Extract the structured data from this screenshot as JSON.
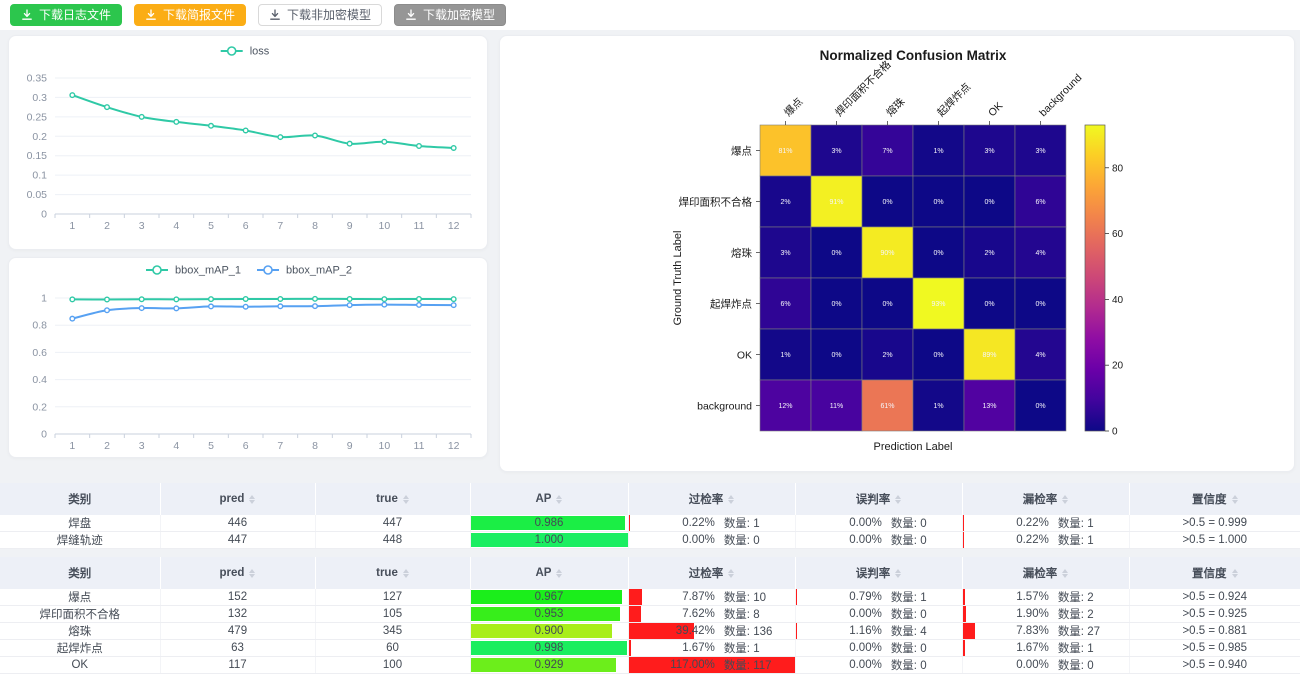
{
  "toolbar": {
    "buttons": [
      {
        "label": "下载日志文件",
        "variant": "green"
      },
      {
        "label": "下载简报文件",
        "variant": "orange"
      },
      {
        "label": "下载非加密模型",
        "variant": "plain"
      },
      {
        "label": "下载加密模型",
        "variant": "gray"
      }
    ]
  },
  "chart_data": [
    {
      "id": "loss",
      "type": "line",
      "legend_position": "top",
      "grid": true,
      "x": [
        1,
        2,
        3,
        4,
        5,
        6,
        7,
        8,
        9,
        10,
        11,
        12
      ],
      "series": [
        {
          "name": "loss",
          "color": "#2fc9a6",
          "values": [
            0.306,
            0.275,
            0.25,
            0.237,
            0.227,
            0.215,
            0.198,
            0.202,
            0.181,
            0.186,
            0.175,
            0.17
          ]
        }
      ],
      "yticks": [
        0,
        0.05,
        0.1,
        0.15,
        0.2,
        0.25,
        0.3,
        0.35
      ],
      "ylim": [
        0,
        0.35
      ]
    },
    {
      "id": "map",
      "type": "line",
      "legend_position": "top",
      "grid": true,
      "x": [
        1,
        2,
        3,
        4,
        5,
        6,
        7,
        8,
        9,
        10,
        11,
        12
      ],
      "series": [
        {
          "name": "bbox_mAP_1",
          "color": "#2fc9a6",
          "values": [
            0.99,
            0.989,
            0.991,
            0.99,
            0.992,
            0.993,
            0.993,
            0.994,
            0.993,
            0.992,
            0.993,
            0.992
          ]
        },
        {
          "name": "bbox_mAP_2",
          "color": "#57a1f2",
          "values": [
            0.848,
            0.91,
            0.926,
            0.924,
            0.938,
            0.936,
            0.939,
            0.94,
            0.948,
            0.951,
            0.949,
            0.948
          ]
        }
      ],
      "yticks": [
        0,
        0.2,
        0.4,
        0.6,
        0.8,
        1
      ],
      "ylim": [
        0,
        1
      ]
    },
    {
      "id": "confusion",
      "type": "heatmap",
      "title": "Normalized Confusion Matrix",
      "xlabel": "Prediction Label",
      "ylabel": "Ground Truth Label",
      "labels": [
        "爆点",
        "焊印面积不合格",
        "熔珠",
        "起焊炸点",
        "OK",
        "background"
      ],
      "matrix": [
        [
          81,
          3,
          7,
          1,
          3,
          3
        ],
        [
          2,
          91,
          0,
          0,
          0,
          6
        ],
        [
          3,
          0,
          90,
          0,
          2,
          4
        ],
        [
          6,
          0,
          0,
          93,
          0,
          0
        ],
        [
          1,
          0,
          2,
          0,
          89,
          4
        ],
        [
          12,
          11,
          61,
          1,
          13,
          0
        ]
      ],
      "value_suffix": "%",
      "vmax": 93,
      "colorbar_ticks": [
        0,
        20,
        40,
        60,
        80
      ],
      "colormap": "plasma"
    }
  ],
  "labels": {
    "count_prefix": "数量: "
  },
  "tables": [
    {
      "headers": [
        {
          "label": "类别",
          "sortable": false
        },
        {
          "label": "pred",
          "sortable": true
        },
        {
          "label": "true",
          "sortable": true
        },
        {
          "label": "AP",
          "sortable": true
        },
        {
          "label": "过检率",
          "sortable": true
        },
        {
          "label": "误判率",
          "sortable": true
        },
        {
          "label": "漏检率",
          "sortable": true
        },
        {
          "label": "置信度",
          "sortable": true
        }
      ],
      "rows": [
        {
          "name": "焊盘",
          "pred": 446,
          "true": 447,
          "ap": 0.986,
          "over": {
            "pct": 0.22,
            "count": 1
          },
          "mis": {
            "pct": 0.0,
            "count": 0
          },
          "miss": {
            "pct": 0.22,
            "count": 1
          },
          "conf": ">0.5 = 0.999"
        },
        {
          "name": "焊缝轨迹",
          "pred": 447,
          "true": 448,
          "ap": 1.0,
          "over": {
            "pct": 0.0,
            "count": 0
          },
          "mis": {
            "pct": 0.0,
            "count": 0
          },
          "miss": {
            "pct": 0.22,
            "count": 1
          },
          "conf": ">0.5 = 1.000"
        }
      ]
    },
    {
      "headers": [
        {
          "label": "类别",
          "sortable": false
        },
        {
          "label": "pred",
          "sortable": true
        },
        {
          "label": "true",
          "sortable": true
        },
        {
          "label": "AP",
          "sortable": true
        },
        {
          "label": "过检率",
          "sortable": true
        },
        {
          "label": "误判率",
          "sortable": true
        },
        {
          "label": "漏检率",
          "sortable": true
        },
        {
          "label": "置信度",
          "sortable": true
        }
      ],
      "rows": [
        {
          "name": "爆点",
          "pred": 152,
          "true": 127,
          "ap": 0.967,
          "over": {
            "pct": 7.87,
            "count": 10
          },
          "mis": {
            "pct": 0.79,
            "count": 1
          },
          "miss": {
            "pct": 1.57,
            "count": 2
          },
          "conf": ">0.5 = 0.924"
        },
        {
          "name": "焊印面积不合格",
          "pred": 132,
          "true": 105,
          "ap": 0.953,
          "over": {
            "pct": 7.62,
            "count": 8
          },
          "mis": {
            "pct": 0.0,
            "count": 0
          },
          "miss": {
            "pct": 1.9,
            "count": 2
          },
          "conf": ">0.5 = 0.925"
        },
        {
          "name": "熔珠",
          "pred": 479,
          "true": 345,
          "ap": 0.9,
          "over": {
            "pct": 39.42,
            "count": 136
          },
          "mis": {
            "pct": 1.16,
            "count": 4
          },
          "miss": {
            "pct": 7.83,
            "count": 27
          },
          "conf": ">0.5 = 0.881"
        },
        {
          "name": "起焊炸点",
          "pred": 63,
          "true": 60,
          "ap": 0.998,
          "over": {
            "pct": 1.67,
            "count": 1
          },
          "mis": {
            "pct": 0.0,
            "count": 0
          },
          "miss": {
            "pct": 1.67,
            "count": 1
          },
          "conf": ">0.5 = 0.985"
        },
        {
          "name": "OK",
          "pred": 117,
          "true": 100,
          "ap": 0.929,
          "over": {
            "pct": 117.0,
            "count": 117
          },
          "mis": {
            "pct": 0.0,
            "count": 0
          },
          "miss": {
            "pct": 0.0,
            "count": 0
          },
          "conf": ">0.5 = 0.940"
        }
      ]
    }
  ],
  "colors": {
    "accent_teal": "#2fc9a6",
    "accent_blue": "#57a1f2",
    "bar_red": "#ff1c1c",
    "button_green": "#2cc64d",
    "button_orange": "#fbad15",
    "button_gray": "#969696"
  }
}
